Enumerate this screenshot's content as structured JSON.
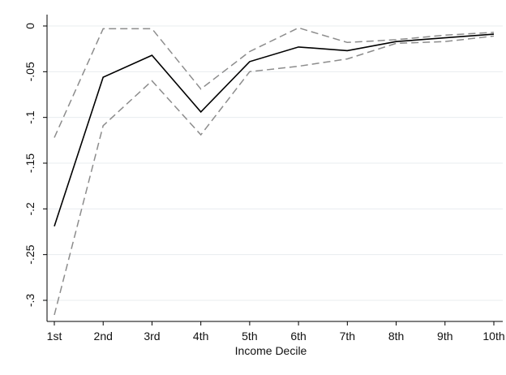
{
  "chart_data": {
    "type": "line",
    "title": "",
    "xlabel": "Income Decile",
    "ylabel": "",
    "categories": [
      "1st",
      "2nd",
      "3rd",
      "4th",
      "5th",
      "6th",
      "7th",
      "8th",
      "9th",
      "10th"
    ],
    "ylim": [
      -0.32,
      0.005
    ],
    "yticks": [
      0,
      -0.05,
      -0.1,
      -0.15,
      -0.2,
      -0.25,
      -0.3
    ],
    "ytick_labels": [
      "0",
      "-.05",
      "-.1",
      "-.15",
      "-.2",
      "-.25",
      "-.3"
    ],
    "grid": true,
    "legend": "none",
    "series": [
      {
        "style": "solid",
        "color": "#000000",
        "values": [
          -0.219,
          -0.056,
          -0.032,
          -0.094,
          -0.039,
          -0.023,
          -0.027,
          -0.017,
          -0.013,
          -0.009
        ]
      },
      {
        "style": "dashed",
        "color": "#8c8c8c",
        "values": [
          -0.122,
          -0.003,
          -0.003,
          -0.069,
          -0.028,
          -0.002,
          -0.018,
          -0.015,
          -0.01,
          -0.007
        ]
      },
      {
        "style": "dashed",
        "color": "#8c8c8c",
        "values": [
          -0.316,
          -0.109,
          -0.06,
          -0.119,
          -0.05,
          -0.044,
          -0.036,
          -0.019,
          -0.017,
          -0.011
        ]
      }
    ]
  }
}
